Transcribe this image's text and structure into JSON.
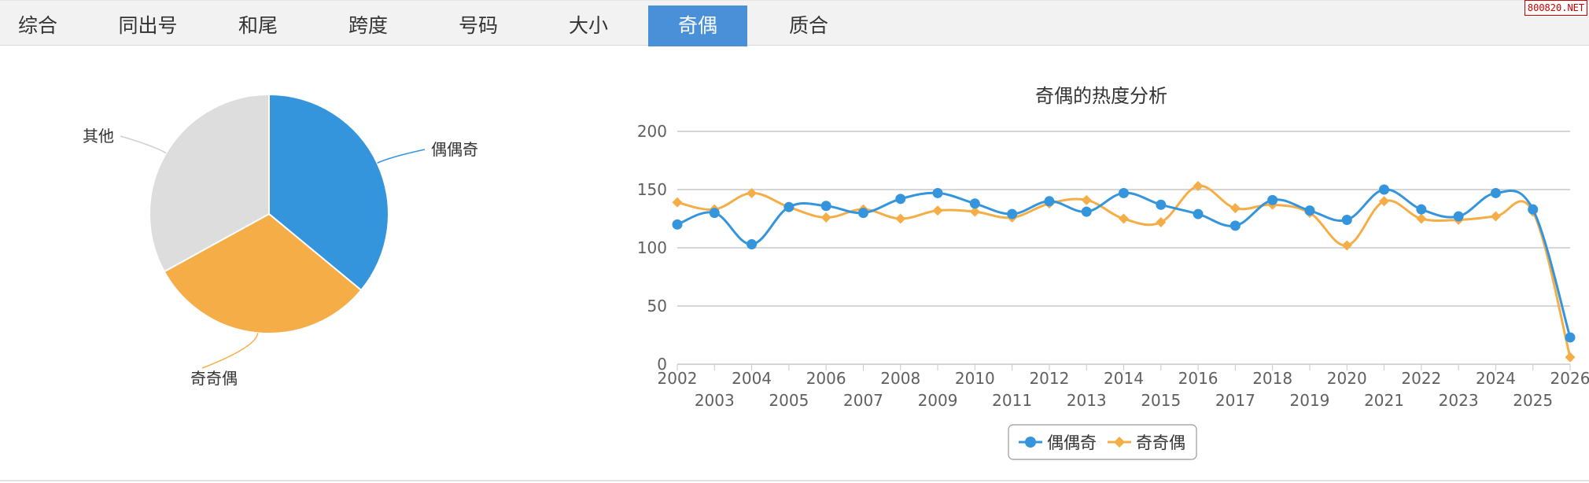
{
  "tabs": [
    {
      "label": "综合",
      "active": false
    },
    {
      "label": "同出号",
      "active": false
    },
    {
      "label": "和尾",
      "active": false
    },
    {
      "label": "跨度",
      "active": false
    },
    {
      "label": "号码",
      "active": false
    },
    {
      "label": "大小",
      "active": false
    },
    {
      "label": "奇偶",
      "active": true
    },
    {
      "label": "质合",
      "active": false
    }
  ],
  "watermark": "800820.NET",
  "colors": {
    "series1": "#3595dc",
    "series2": "#f5ae47",
    "other": "#dddddd",
    "active_tab": "#4a90d9",
    "grid": "#c8c8c8"
  },
  "chart_data": [
    {
      "type": "pie",
      "slices": [
        {
          "label": "偶偶奇",
          "value": 36,
          "color": "#3595dc"
        },
        {
          "label": "奇奇偶",
          "value": 31,
          "color": "#f5ae47"
        },
        {
          "label": "其他",
          "value": 33,
          "color": "#dddddd"
        }
      ]
    },
    {
      "type": "line",
      "title": "奇偶的热度分析",
      "x": [
        "2002",
        "2003",
        "2004",
        "2005",
        "2006",
        "2007",
        "2008",
        "2009",
        "2010",
        "2011",
        "2012",
        "2013",
        "2014",
        "2015",
        "2016",
        "2017",
        "2018",
        "2019",
        "2020",
        "2021",
        "2022",
        "2023",
        "2024",
        "2025",
        "2026"
      ],
      "ylim": [
        0,
        200
      ],
      "yticks": [
        0,
        50,
        100,
        150,
        200
      ],
      "grid": true,
      "legend_position": "bottom-center",
      "series": [
        {
          "name": "偶偶奇",
          "color": "#3595dc",
          "marker": "circle",
          "values": [
            120,
            130,
            103,
            135,
            136,
            130,
            142,
            147,
            138,
            129,
            140,
            131,
            147,
            137,
            129,
            119,
            141,
            132,
            124,
            150,
            133,
            127,
            147,
            133,
            23
          ]
        },
        {
          "name": "奇奇偶",
          "color": "#f5ae47",
          "marker": "diamond",
          "values": [
            139,
            133,
            147,
            135,
            126,
            133,
            125,
            132,
            131,
            126,
            138,
            141,
            125,
            122,
            153,
            134,
            137,
            130,
            102,
            140,
            125,
            124,
            127,
            131,
            6
          ]
        }
      ]
    }
  ]
}
